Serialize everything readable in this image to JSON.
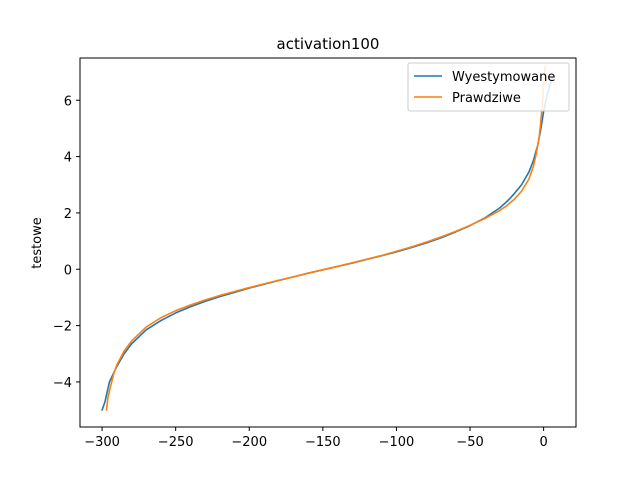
{
  "chart_data": {
    "type": "line",
    "title": "activation100",
    "xlabel": "",
    "ylabel": "testowe",
    "xlim": [
      -315,
      22
    ],
    "ylim": [
      -5.6,
      7.5
    ],
    "xticks": [
      -300,
      -250,
      -200,
      -150,
      -100,
      -50,
      0
    ],
    "xtick_labels": [
      "−300",
      "−250",
      "−200",
      "−150",
      "−100",
      "−50",
      "0"
    ],
    "yticks": [
      -4,
      -2,
      0,
      2,
      4,
      6
    ],
    "ytick_labels": [
      "−4",
      "−2",
      "0",
      "2",
      "4",
      "6"
    ],
    "grid": false,
    "legend_position": "top-right",
    "series": [
      {
        "name": "Wyestymowane",
        "color": "#1f77b4",
        "x": [
          -300,
          -298,
          -295,
          -290,
          -285,
          -280,
          -270,
          -260,
          -250,
          -240,
          -230,
          -220,
          -210,
          -200,
          -190,
          -180,
          -170,
          -160,
          -150,
          -140,
          -130,
          -120,
          -110,
          -100,
          -90,
          -80,
          -70,
          -60,
          -50,
          -40,
          -30,
          -25,
          -20,
          -15,
          -10,
          -7,
          -4,
          -2,
          0,
          2,
          4,
          6
        ],
        "y": [
          -5.0,
          -4.7,
          -4.0,
          -3.45,
          -3.0,
          -2.65,
          -2.15,
          -1.82,
          -1.55,
          -1.33,
          -1.14,
          -0.97,
          -0.82,
          -0.67,
          -0.53,
          -0.4,
          -0.27,
          -0.14,
          -0.02,
          0.1,
          0.22,
          0.35,
          0.48,
          0.62,
          0.77,
          0.93,
          1.11,
          1.32,
          1.55,
          1.82,
          2.17,
          2.4,
          2.68,
          3.0,
          3.45,
          3.85,
          4.4,
          4.95,
          5.6,
          6.1,
          6.5,
          6.8
        ]
      },
      {
        "name": "Prawdziwe",
        "color": "#ff7f0e",
        "x": [
          -297,
          -296,
          -294,
          -292,
          -290,
          -285,
          -280,
          -270,
          -260,
          -250,
          -240,
          -230,
          -220,
          -210,
          -200,
          -190,
          -180,
          -170,
          -160,
          -150,
          -140,
          -130,
          -120,
          -110,
          -100,
          -90,
          -80,
          -70,
          -60,
          -50,
          -40,
          -30,
          -25,
          -20,
          -15,
          -10,
          -7,
          -5,
          -3,
          -2,
          -1,
          0,
          1
        ],
        "y": [
          -5.0,
          -4.55,
          -4.1,
          -3.7,
          -3.4,
          -2.9,
          -2.55,
          -2.05,
          -1.72,
          -1.47,
          -1.27,
          -1.09,
          -0.93,
          -0.79,
          -0.65,
          -0.52,
          -0.39,
          -0.27,
          -0.14,
          -0.02,
          0.1,
          0.23,
          0.36,
          0.49,
          0.64,
          0.79,
          0.96,
          1.14,
          1.34,
          1.56,
          1.8,
          2.08,
          2.26,
          2.48,
          2.77,
          3.2,
          3.65,
          4.1,
          4.7,
          5.2,
          5.8,
          6.5,
          7.2
        ]
      }
    ]
  }
}
